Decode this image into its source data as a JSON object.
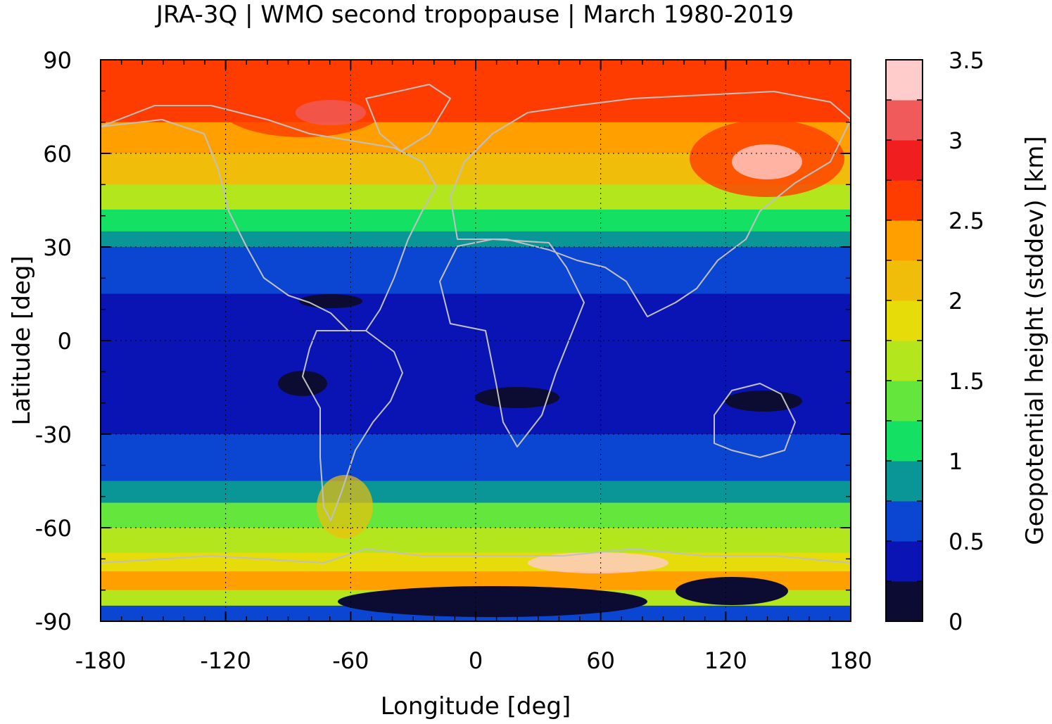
{
  "chart_data": {
    "type": "heatmap",
    "title": "JRA-3Q | WMO second tropopause | March 1980-2019",
    "xlabel": "Longitude [deg]",
    "ylabel": "Latitude [deg]",
    "colorbar_label": "Geopotential height (stddev) [km]",
    "xlim": [
      -180,
      180
    ],
    "ylim": [
      -90,
      90
    ],
    "xticks": [
      "-180",
      "-120",
      "-60",
      "0",
      "60",
      "120",
      "180"
    ],
    "yticks": [
      "90",
      "60",
      "30",
      "0",
      "-30",
      "-60",
      "-90"
    ],
    "colorbar_ticks": [
      "3.5",
      "3",
      "2.5",
      "2",
      "1.5",
      "1",
      "0.5",
      "0"
    ],
    "colorbar_range": [
      0,
      3.5
    ],
    "colorbar_step": 0.25,
    "colors": [
      "#0c0c33",
      "#0a14b4",
      "#0a46d2",
      "#0a9696",
      "#14e164",
      "#64e63c",
      "#b4e61e",
      "#e6dc0a",
      "#f0be0a",
      "#ffa000",
      "#ff3c00",
      "#f01e1e",
      "#f05a5a",
      "#ffcccc"
    ],
    "grid": true,
    "grid_style": "dotted",
    "coastline_color": "#c0c0c0",
    "lat_profile": [
      {
        "lat": 90,
        "value": 2.6
      },
      {
        "lat": 80,
        "value": 2.5
      },
      {
        "lat": 70,
        "value": 2.3
      },
      {
        "lat": 60,
        "value": 2.0
      },
      {
        "lat": 50,
        "value": 1.6
      },
      {
        "lat": 42,
        "value": 1.2
      },
      {
        "lat": 35,
        "value": 0.9
      },
      {
        "lat": 30,
        "value": 0.6
      },
      {
        "lat": 20,
        "value": 0.55
      },
      {
        "lat": 15,
        "value": 0.45
      },
      {
        "lat": 10,
        "value": 0.4
      },
      {
        "lat": 0,
        "value": 0.45
      },
      {
        "lat": -10,
        "value": 0.45
      },
      {
        "lat": -20,
        "value": 0.4
      },
      {
        "lat": -30,
        "value": 0.55
      },
      {
        "lat": -38,
        "value": 0.7
      },
      {
        "lat": -45,
        "value": 0.95
      },
      {
        "lat": -52,
        "value": 1.4
      },
      {
        "lat": -60,
        "value": 1.6
      },
      {
        "lat": -68,
        "value": 1.9
      },
      {
        "lat": -74,
        "value": 2.3
      },
      {
        "lat": -80,
        "value": 1.5
      },
      {
        "lat": -85,
        "value": 0.5
      },
      {
        "lat": -90,
        "value": 0.3
      }
    ]
  }
}
